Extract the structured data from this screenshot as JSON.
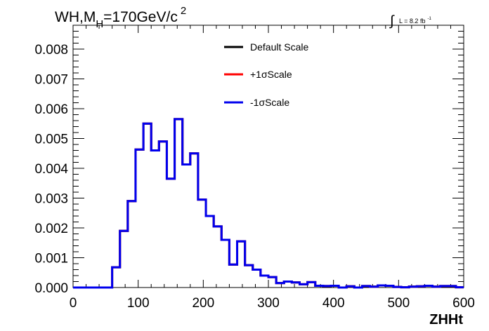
{
  "title": {
    "prefix": "WH,M",
    "subscript": "H",
    "value": "=170GeV/c",
    "superscript": "2"
  },
  "lumi": {
    "integral_symbol": "∫",
    "text": "L = 8.2 fb",
    "superscript": "-1"
  },
  "chart_data": {
    "type": "line",
    "xlabel": "ZHHt",
    "ylabel": "",
    "xlim": [
      0,
      600
    ],
    "ylim": [
      0,
      0.0088
    ],
    "x_ticks": [
      0,
      100,
      200,
      300,
      400,
      500,
      600
    ],
    "y_ticks": [
      0.0,
      0.001,
      0.002,
      0.003,
      0.004,
      0.005,
      0.006,
      0.007,
      0.008
    ],
    "y_tick_labels": [
      "0.000",
      "0.001",
      "0.002",
      "0.003",
      "0.004",
      "0.005",
      "0.006",
      "0.007",
      "0.008"
    ],
    "bin_width": 12,
    "bin_edges_start": 0,
    "legend_position": "top-center",
    "series": [
      {
        "name": "Default Scale",
        "color": "#000000",
        "values": [
          0,
          0,
          0,
          0,
          0,
          0.00068,
          0.0019,
          0.0029,
          0.00463,
          0.0055,
          0.0046,
          0.0049,
          0.00365,
          0.00565,
          0.00413,
          0.0045,
          0.00295,
          0.0024,
          0.00205,
          0.0016,
          0.00077,
          0.00155,
          0.00075,
          0.0006,
          0.0004,
          0.00035,
          0.00015,
          0.0002,
          0.00017,
          0.00011,
          0.00018,
          6e-05,
          5e-05,
          6e-05,
          0.0,
          4e-05,
          0.0,
          5e-05,
          3e-05,
          7e-05,
          6e-05,
          2e-05,
          1e-05,
          3e-05,
          4e-05,
          6e-05,
          3e-05,
          5e-05,
          5e-05,
          1e-05
        ]
      },
      {
        "name": "+1σScale",
        "color": "#ff0000",
        "values": [
          0,
          0,
          0,
          0,
          0,
          0.00068,
          0.0019,
          0.0029,
          0.00463,
          0.0055,
          0.0046,
          0.0049,
          0.00365,
          0.00565,
          0.00413,
          0.0045,
          0.00295,
          0.0024,
          0.00205,
          0.0016,
          0.00077,
          0.00155,
          0.00075,
          0.0006,
          0.0004,
          0.00035,
          0.00015,
          0.0002,
          0.00017,
          0.00011,
          0.00018,
          6e-05,
          5e-05,
          6e-05,
          0.0,
          4e-05,
          0.0,
          5e-05,
          3e-05,
          7e-05,
          6e-05,
          2e-05,
          1e-05,
          3e-05,
          4e-05,
          6e-05,
          3e-05,
          5e-05,
          5e-05,
          1e-05
        ]
      },
      {
        "name": "-1σScale",
        "color": "#0000ee",
        "values": [
          0,
          0,
          0,
          0,
          0,
          0.00068,
          0.0019,
          0.0029,
          0.00463,
          0.0055,
          0.0046,
          0.0049,
          0.00365,
          0.00565,
          0.00413,
          0.0045,
          0.00295,
          0.0024,
          0.00205,
          0.0016,
          0.00077,
          0.00155,
          0.00075,
          0.0006,
          0.0004,
          0.00035,
          0.00015,
          0.0002,
          0.00017,
          0.00011,
          0.00018,
          6e-05,
          5e-05,
          6e-05,
          0.0,
          4e-05,
          0.0,
          5e-05,
          3e-05,
          7e-05,
          6e-05,
          2e-05,
          1e-05,
          3e-05,
          4e-05,
          6e-05,
          3e-05,
          5e-05,
          5e-05,
          1e-05
        ]
      }
    ]
  }
}
